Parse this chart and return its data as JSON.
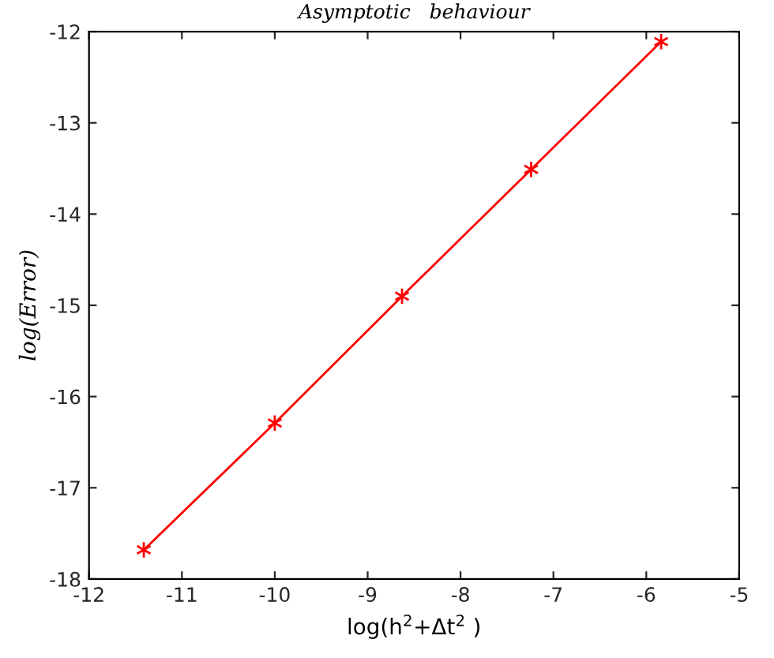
{
  "chart_data": {
    "type": "line",
    "title": "Asymptotic   behaviour",
    "xlabel": "log(h$^{2}$+Δt$^{2}$ )",
    "ylabel": "log(Error)",
    "x": [
      -11.41,
      -10.0,
      -8.63,
      -7.24,
      -5.84
    ],
    "series": [
      {
        "color": "#ff0000",
        "values": [
          -17.68,
          -16.29,
          -14.9,
          -13.51,
          -12.11
        ]
      }
    ],
    "xlim": [
      -12,
      -5
    ],
    "xticks": [
      -12,
      -11,
      -10,
      -9,
      -8,
      -7,
      -6,
      -5
    ],
    "ylim": [
      -18,
      -12
    ],
    "yticks": [
      -18,
      -17,
      -16,
      -15,
      -14,
      -13,
      -12
    ],
    "grid": false,
    "legend": false,
    "marker": "cross",
    "line_style": "solid"
  }
}
